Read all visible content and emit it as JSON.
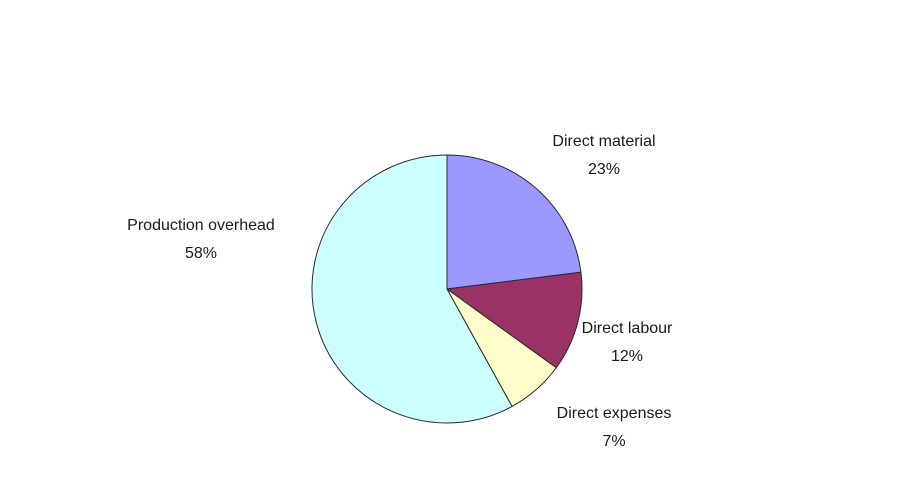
{
  "chart_data": {
    "type": "pie",
    "title": "",
    "legend": "none",
    "slices": [
      {
        "name": "Direct material",
        "value": 23,
        "label": "23%",
        "color": "#9999ff"
      },
      {
        "name": "Direct labour",
        "value": 12,
        "label": "12%",
        "color": "#993366"
      },
      {
        "name": "Direct expenses",
        "value": 7,
        "label": "7%",
        "color": "#ffffcc"
      },
      {
        "name": "Production overhead",
        "value": 58,
        "label": "58%",
        "color": "#ccffff"
      }
    ]
  }
}
